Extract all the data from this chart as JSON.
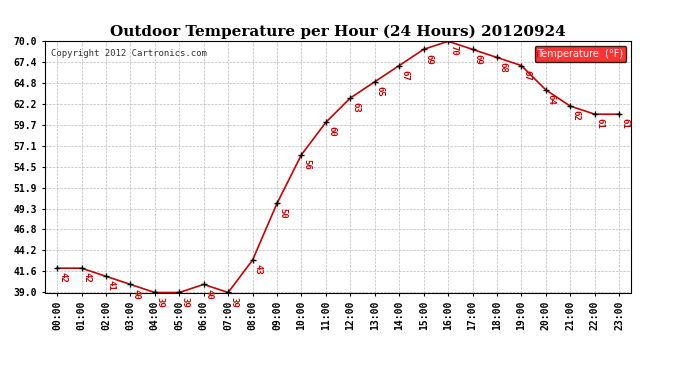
{
  "title": "Outdoor Temperature per Hour (24 Hours) 20120924",
  "copyright": "Copyright 2012 Cartronics.com",
  "legend_label": "Temperature  (°F)",
  "hours": [
    "00:00",
    "01:00",
    "02:00",
    "03:00",
    "04:00",
    "05:00",
    "06:00",
    "07:00",
    "08:00",
    "09:00",
    "10:00",
    "11:00",
    "12:00",
    "13:00",
    "14:00",
    "15:00",
    "16:00",
    "17:00",
    "18:00",
    "19:00",
    "20:00",
    "21:00",
    "22:00",
    "23:00"
  ],
  "temperatures": [
    42,
    42,
    41,
    40,
    39,
    39,
    40,
    39,
    43,
    50,
    56,
    60,
    63,
    65,
    67,
    69,
    70,
    69,
    68,
    67,
    64,
    62,
    61,
    61
  ],
  "ylim": [
    39.0,
    70.0
  ],
  "yticks": [
    39.0,
    41.6,
    44.2,
    46.8,
    49.3,
    51.9,
    54.5,
    57.1,
    59.7,
    62.2,
    64.8,
    67.4,
    70.0
  ],
  "line_color": "#cc0000",
  "marker_color": "#000000",
  "bg_color": "#ffffff",
  "grid_color": "#bbbbbb",
  "title_fontsize": 11,
  "tick_fontsize": 7,
  "annot_fontsize": 6.5,
  "copyright_fontsize": 6.5
}
